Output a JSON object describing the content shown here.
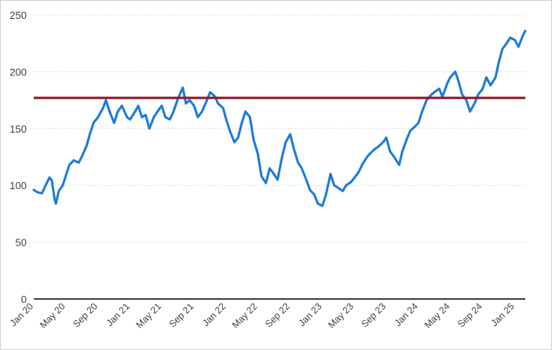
{
  "chart_data": {
    "type": "line",
    "title": "",
    "xlabel": "",
    "ylabel": "",
    "ylim": [
      0,
      250
    ],
    "yticks": [
      0,
      50,
      100,
      150,
      200,
      250
    ],
    "xlim": [
      "2020-01-01",
      "2025-02-10"
    ],
    "xticks": [
      {
        "label": "Jan 20",
        "date": "2020-01-01"
      },
      {
        "label": "May 20",
        "date": "2020-05-01"
      },
      {
        "label": "Sep 20",
        "date": "2020-09-01"
      },
      {
        "label": "Jan 21",
        "date": "2021-01-01"
      },
      {
        "label": "May 21",
        "date": "2021-05-01"
      },
      {
        "label": "Sep 21",
        "date": "2021-09-01"
      },
      {
        "label": "Jan 22",
        "date": "2022-01-01"
      },
      {
        "label": "May 22",
        "date": "2022-05-01"
      },
      {
        "label": "Sep 22",
        "date": "2022-09-01"
      },
      {
        "label": "Jan 23",
        "date": "2023-01-01"
      },
      {
        "label": "May 23",
        "date": "2023-05-01"
      },
      {
        "label": "Sep 23",
        "date": "2023-09-01"
      },
      {
        "label": "Jan 24",
        "date": "2024-01-01"
      },
      {
        "label": "May 24",
        "date": "2024-05-01"
      },
      {
        "label": "Sep 24",
        "date": "2024-09-01"
      },
      {
        "label": "Jan 25",
        "date": "2025-01-01"
      }
    ],
    "grid": {
      "horizontal": true,
      "style": "dotted"
    },
    "legend": "none",
    "series": [
      {
        "color": "#1f7ad6",
        "points": [
          [
            "2020-01-01",
            96
          ],
          [
            "2020-01-15",
            94
          ],
          [
            "2020-02-01",
            93
          ],
          [
            "2020-02-15",
            100
          ],
          [
            "2020-03-01",
            107
          ],
          [
            "2020-03-10",
            104
          ],
          [
            "2020-03-20",
            88
          ],
          [
            "2020-03-25",
            84
          ],
          [
            "2020-04-05",
            95
          ],
          [
            "2020-04-20",
            100
          ],
          [
            "2020-05-01",
            108
          ],
          [
            "2020-05-15",
            118
          ],
          [
            "2020-06-01",
            122
          ],
          [
            "2020-06-20",
            120
          ],
          [
            "2020-07-01",
            125
          ],
          [
            "2020-07-20",
            135
          ],
          [
            "2020-08-01",
            145
          ],
          [
            "2020-08-15",
            155
          ],
          [
            "2020-09-01",
            160
          ],
          [
            "2020-09-20",
            168
          ],
          [
            "2020-10-01",
            175
          ],
          [
            "2020-10-15",
            165
          ],
          [
            "2020-11-01",
            155
          ],
          [
            "2020-11-15",
            165
          ],
          [
            "2020-12-01",
            170
          ],
          [
            "2020-12-20",
            160
          ],
          [
            "2021-01-01",
            158
          ],
          [
            "2021-01-20",
            165
          ],
          [
            "2021-02-01",
            170
          ],
          [
            "2021-02-15",
            160
          ],
          [
            "2021-03-01",
            162
          ],
          [
            "2021-03-15",
            150
          ],
          [
            "2021-04-01",
            160
          ],
          [
            "2021-04-15",
            165
          ],
          [
            "2021-05-01",
            170
          ],
          [
            "2021-05-15",
            160
          ],
          [
            "2021-06-01",
            158
          ],
          [
            "2021-06-15",
            165
          ],
          [
            "2021-07-01",
            176
          ],
          [
            "2021-07-20",
            186
          ],
          [
            "2021-08-01",
            172
          ],
          [
            "2021-08-15",
            175
          ],
          [
            "2021-09-01",
            170
          ],
          [
            "2021-09-15",
            160
          ],
          [
            "2021-10-01",
            165
          ],
          [
            "2021-10-20",
            175
          ],
          [
            "2021-11-01",
            182
          ],
          [
            "2021-11-20",
            178
          ],
          [
            "2021-12-01",
            172
          ],
          [
            "2021-12-20",
            168
          ],
          [
            "2022-01-01",
            158
          ],
          [
            "2022-01-15",
            148
          ],
          [
            "2022-02-01",
            138
          ],
          [
            "2022-02-15",
            142
          ],
          [
            "2022-03-01",
            155
          ],
          [
            "2022-03-15",
            165
          ],
          [
            "2022-04-01",
            160
          ],
          [
            "2022-04-15",
            140
          ],
          [
            "2022-05-01",
            128
          ],
          [
            "2022-05-15",
            108
          ],
          [
            "2022-06-01",
            102
          ],
          [
            "2022-06-15",
            115
          ],
          [
            "2022-07-01",
            110
          ],
          [
            "2022-07-15",
            105
          ],
          [
            "2022-08-01",
            125
          ],
          [
            "2022-08-15",
            138
          ],
          [
            "2022-09-01",
            145
          ],
          [
            "2022-09-15",
            132
          ],
          [
            "2022-10-01",
            120
          ],
          [
            "2022-10-15",
            115
          ],
          [
            "2022-11-01",
            105
          ],
          [
            "2022-11-15",
            96
          ],
          [
            "2022-12-01",
            92
          ],
          [
            "2022-12-15",
            84
          ],
          [
            "2023-01-01",
            82
          ],
          [
            "2023-01-15",
            92
          ],
          [
            "2023-02-01",
            110
          ],
          [
            "2023-02-15",
            100
          ],
          [
            "2023-03-01",
            98
          ],
          [
            "2023-03-20",
            95
          ],
          [
            "2023-04-01",
            100
          ],
          [
            "2023-04-20",
            103
          ],
          [
            "2023-05-01",
            106
          ],
          [
            "2023-05-20",
            112
          ],
          [
            "2023-06-01",
            118
          ],
          [
            "2023-06-20",
            125
          ],
          [
            "2023-07-01",
            128
          ],
          [
            "2023-07-20",
            132
          ],
          [
            "2023-08-01",
            134
          ],
          [
            "2023-08-20",
            138
          ],
          [
            "2023-09-01",
            142
          ],
          [
            "2023-09-15",
            130
          ],
          [
            "2023-10-01",
            125
          ],
          [
            "2023-10-20",
            118
          ],
          [
            "2023-11-01",
            130
          ],
          [
            "2023-11-20",
            142
          ],
          [
            "2023-12-01",
            148
          ],
          [
            "2023-12-20",
            152
          ],
          [
            "2024-01-01",
            155
          ],
          [
            "2024-01-15",
            165
          ],
          [
            "2024-02-01",
            175
          ],
          [
            "2024-02-20",
            180
          ],
          [
            "2024-03-01",
            182
          ],
          [
            "2024-03-20",
            185
          ],
          [
            "2024-04-01",
            178
          ],
          [
            "2024-04-20",
            190
          ],
          [
            "2024-05-01",
            195
          ],
          [
            "2024-05-20",
            200
          ],
          [
            "2024-06-01",
            192
          ],
          [
            "2024-06-15",
            180
          ],
          [
            "2024-07-01",
            175
          ],
          [
            "2024-07-15",
            165
          ],
          [
            "2024-08-01",
            172
          ],
          [
            "2024-08-15",
            180
          ],
          [
            "2024-09-01",
            185
          ],
          [
            "2024-09-15",
            195
          ],
          [
            "2024-10-01",
            188
          ],
          [
            "2024-10-20",
            195
          ],
          [
            "2024-11-01",
            208
          ],
          [
            "2024-11-15",
            220
          ],
          [
            "2024-12-01",
            225
          ],
          [
            "2024-12-15",
            230
          ],
          [
            "2025-01-01",
            228
          ],
          [
            "2025-01-15",
            222
          ],
          [
            "2025-02-01",
            232
          ],
          [
            "2025-02-10",
            236
          ]
        ]
      }
    ],
    "reference_line": {
      "y": 177,
      "color": "#8b1a2b"
    }
  }
}
